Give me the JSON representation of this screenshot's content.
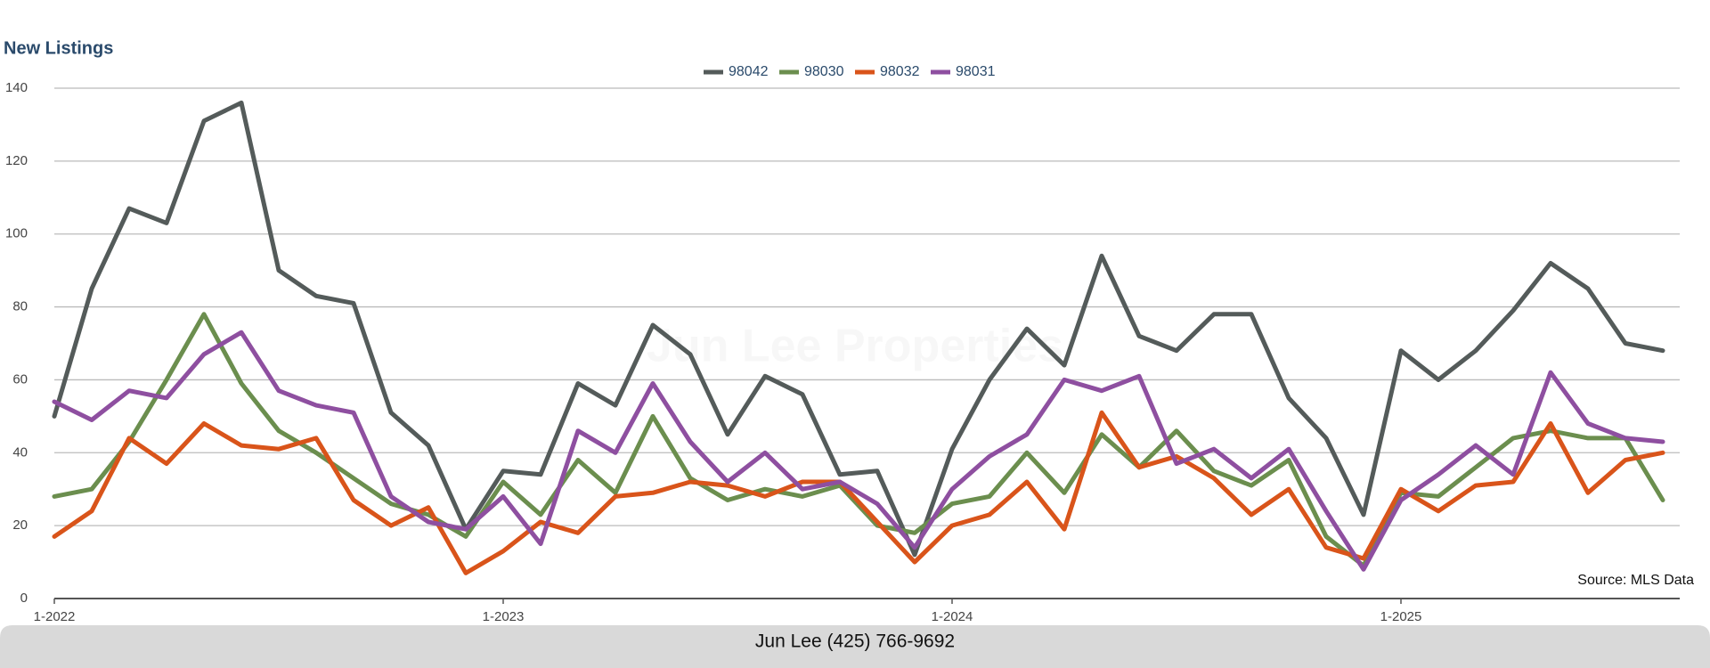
{
  "chart_data": {
    "type": "line",
    "title": "New Listings",
    "categories": [
      "1-2022",
      null,
      null,
      null,
      null,
      null,
      null,
      null,
      null,
      null,
      null,
      null,
      "1-2023",
      null,
      null,
      null,
      null,
      null,
      null,
      null,
      null,
      null,
      null,
      null,
      "1-2024",
      null,
      null,
      null,
      null,
      null,
      null,
      null,
      null,
      null,
      null,
      null,
      "1-2025",
      null,
      null,
      null,
      null,
      null,
      null,
      null
    ],
    "series": [
      {
        "name": "98042",
        "color": "#545b5a",
        "values": [
          50,
          85,
          107,
          103,
          131,
          136,
          90,
          83,
          81,
          51,
          42,
          19,
          35,
          34,
          59,
          53,
          75,
          67,
          45,
          61,
          56,
          34,
          35,
          12,
          41,
          60,
          74,
          64,
          94,
          72,
          68,
          78,
          78,
          55,
          44,
          23,
          68,
          60,
          68,
          79,
          92,
          85,
          70,
          68
        ]
      },
      {
        "name": "98030",
        "color": "#6b8e4e",
        "values": [
          28,
          30,
          43,
          60,
          78,
          59,
          46,
          40,
          33,
          26,
          23,
          17,
          32,
          23,
          38,
          29,
          50,
          33,
          27,
          30,
          28,
          31,
          20,
          18,
          26,
          28,
          40,
          29,
          45,
          36,
          46,
          35,
          31,
          38,
          17,
          9,
          29,
          28,
          36,
          44,
          46,
          44,
          44,
          27
        ]
      },
      {
        "name": "98032",
        "color": "#d9541a",
        "values": [
          17,
          24,
          44,
          37,
          48,
          42,
          41,
          44,
          27,
          20,
          25,
          7,
          13,
          21,
          18,
          28,
          29,
          32,
          31,
          28,
          32,
          32,
          21,
          10,
          20,
          23,
          32,
          19,
          51,
          36,
          39,
          33,
          23,
          30,
          14,
          11,
          30,
          24,
          31,
          32,
          48,
          29,
          38,
          40
        ]
      },
      {
        "name": "98031",
        "color": "#8e4fa0",
        "values": [
          54,
          49,
          57,
          55,
          67,
          73,
          57,
          53,
          51,
          28,
          21,
          19,
          28,
          15,
          46,
          40,
          59,
          43,
          32,
          40,
          30,
          32,
          26,
          14,
          30,
          39,
          45,
          60,
          57,
          61,
          37,
          41,
          33,
          41,
          24,
          8,
          27,
          34,
          42,
          34,
          62,
          48,
          44,
          43
        ]
      }
    ],
    "ylim": [
      0,
      140
    ],
    "yticks": [
      0,
      20,
      40,
      60,
      80,
      100,
      120,
      140
    ],
    "grid": true,
    "legend": "top",
    "watermark": "Jun Lee Properties",
    "source": "Source: MLS Data"
  },
  "footer": "Jun Lee (425) 766-9692"
}
